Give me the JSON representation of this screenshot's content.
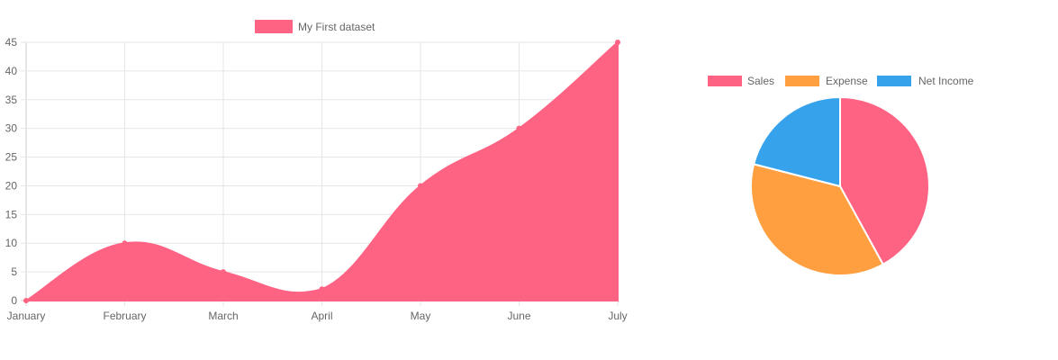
{
  "chart_data": [
    {
      "type": "area",
      "categories": [
        "January",
        "February",
        "March",
        "April",
        "May",
        "June",
        "July"
      ],
      "series": [
        {
          "name": "My First dataset",
          "values": [
            0,
            10,
            5,
            2,
            20,
            30,
            45
          ],
          "color": "#ff6384"
        }
      ],
      "ylim": [
        0,
        45
      ],
      "yticks": [
        0,
        5,
        10,
        15,
        20,
        25,
        30,
        35,
        40,
        45
      ],
      "grid": true,
      "legend": "top"
    },
    {
      "type": "pie",
      "labels": [
        "Sales",
        "Expense",
        "Net Income"
      ],
      "values": [
        42,
        37,
        21
      ],
      "colors": [
        "#ff6384",
        "#ff9f40",
        "#36a2eb"
      ],
      "legend": "top"
    }
  ]
}
